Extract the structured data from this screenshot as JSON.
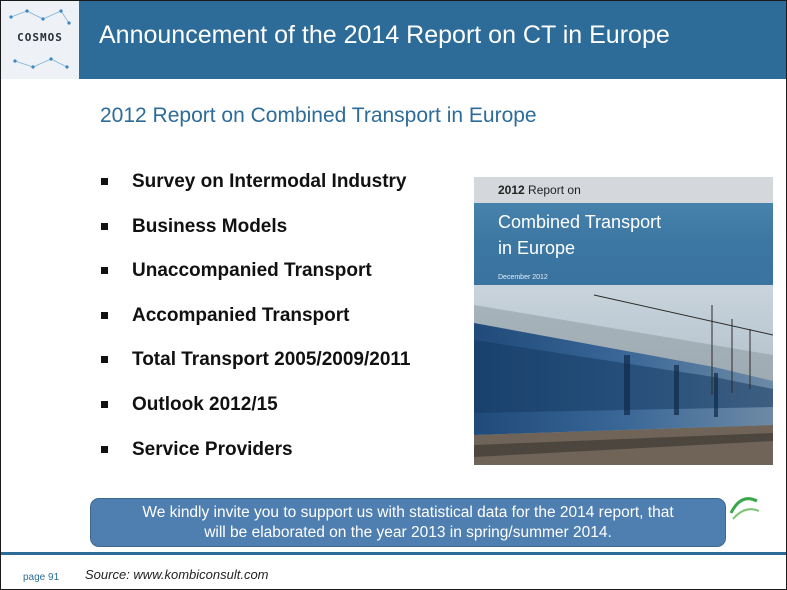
{
  "logo": {
    "text": "COSMOS"
  },
  "header": {
    "title": "Announcement of the 2014 Report on CT in Europe"
  },
  "subtitle": "2012 Report on Combined Transport in Europe",
  "bullets": [
    "Survey on Intermodal Industry",
    "Business Models",
    "Unaccompanied Transport",
    "Accompanied Transport",
    "Total Transport 2005/2009/2011",
    "Outlook 2012/15",
    "Service Providers"
  ],
  "cover": {
    "year": "2012",
    "line1_rest": " Report on",
    "title_line1": "Combined Transport",
    "title_line2": "in Europe",
    "date": "December 2012"
  },
  "callout": {
    "line1": "We kindly invite you to support us with statistical data for the 2014 report, that",
    "line2": "will be elaborated on the year 2013 in spring/summer 2014."
  },
  "footer": {
    "page": "page 91",
    "source": "Source: www.kombiconsult.com"
  },
  "colors": {
    "header_blue": "#2d6c98",
    "callout_blue": "#4f7fb1"
  }
}
